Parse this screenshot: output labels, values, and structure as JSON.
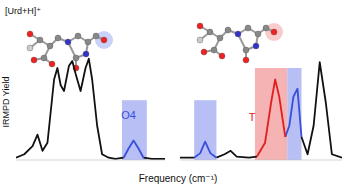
{
  "chart_data": [
    {
      "type": "line",
      "title": "[Urd+H]⁺",
      "y_label": "IRMPD Yield",
      "x_label": "Frequency (cm⁻¹)",
      "xlim": [
        1000,
        1900
      ],
      "ylim": [
        0,
        1
      ],
      "tick_labels": false,
      "x": [
        1000,
        1050,
        1100,
        1130,
        1160,
        1190,
        1230,
        1250,
        1270,
        1290,
        1320,
        1340,
        1360,
        1390,
        1420,
        1440,
        1460,
        1490,
        1520,
        1560,
        1600,
        1650,
        1680,
        1710,
        1740,
        1770,
        1820,
        1900
      ],
      "series": [
        {
          "color": "#111111",
          "values": [
            0.02,
            0.05,
            0.12,
            0.22,
            0.08,
            0.15,
            0.7,
            0.8,
            0.65,
            0.6,
            0.82,
            0.86,
            0.75,
            0.6,
            0.8,
            0.88,
            0.7,
            0.3,
            0.05,
            0.02,
            0.01,
            0.02,
            null,
            null,
            null,
            0.02,
            0.01,
            0.01
          ]
        },
        {
          "color": "#3a4fd8",
          "values": [
            null,
            null,
            null,
            null,
            null,
            null,
            null,
            null,
            null,
            null,
            null,
            null,
            null,
            null,
            null,
            null,
            null,
            null,
            null,
            null,
            null,
            0.02,
            0.1,
            0.17,
            0.1,
            0.02,
            null,
            null
          ]
        }
      ],
      "shaded": [
        {
          "start": 1640,
          "end": 1790,
          "height": 0.52,
          "color": "#aab4f3"
        }
      ],
      "annotations": [
        {
          "text": "O4",
          "x": 1680,
          "y": 0.36,
          "color": "#3a4fd8"
        }
      ]
    },
    {
      "type": "line",
      "xlim": [
        3300,
        3700
      ],
      "ylim": [
        0,
        1
      ],
      "tick_labels": false,
      "x": [
        3300,
        3335,
        3350,
        3362,
        3375,
        3390,
        3410,
        3425,
        3440,
        3470,
        3490,
        3510,
        3525,
        3535,
        3545,
        3560,
        3570,
        3580,
        3590,
        3600,
        3615,
        3630,
        3645,
        3660,
        3675,
        3700
      ],
      "series": [
        {
          "color": "#111111",
          "values": [
            0.02,
            0.02,
            null,
            null,
            null,
            0.02,
            0.05,
            0.08,
            0.03,
            0.02,
            0.03,
            null,
            null,
            null,
            null,
            null,
            null,
            null,
            null,
            0.2,
            0.05,
            0.3,
            0.85,
            0.5,
            0.05,
            0.02
          ]
        },
        {
          "color": "#3a4fd8",
          "values": [
            null,
            0.02,
            0.06,
            0.16,
            0.06,
            0.02,
            null,
            null,
            null,
            null,
            null,
            null,
            null,
            null,
            null,
            0.2,
            0.3,
            0.55,
            0.62,
            0.2,
            null,
            null,
            null,
            null,
            null,
            null
          ]
        },
        {
          "color": "#e02020",
          "values": [
            null,
            null,
            null,
            null,
            null,
            null,
            null,
            null,
            null,
            null,
            0.03,
            0.15,
            0.5,
            0.7,
            0.55,
            0.2,
            null,
            null,
            null,
            null,
            null,
            null,
            null,
            null,
            null,
            null
          ]
        }
      ],
      "shaded": [
        {
          "start": 3335,
          "end": 3390,
          "height": 0.52,
          "color": "#aab4f3"
        },
        {
          "start": 3485,
          "end": 3565,
          "height": 0.8,
          "color": "#f3a6a6"
        },
        {
          "start": 3565,
          "end": 3600,
          "height": 0.8,
          "color": "#aab4f3"
        }
      ],
      "annotations": [
        {
          "text": "T",
          "x": 3478,
          "y": 0.34,
          "color": "#e02020"
        }
      ]
    }
  ]
}
